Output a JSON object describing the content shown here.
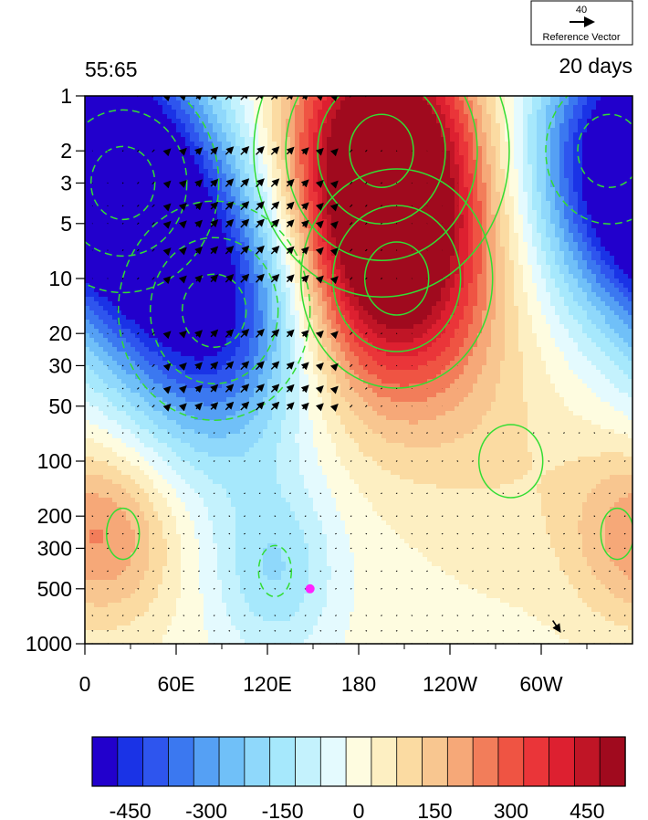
{
  "figure": {
    "left_title": "55:65",
    "right_title": "20 days",
    "reference_vector": {
      "magnitude": "40",
      "label": "Reference Vector"
    }
  },
  "chart_data": {
    "type": "heatmap",
    "description_free": true,
    "x_ticks": [
      {
        "lon": 0,
        "label": "0"
      },
      {
        "lon": 60,
        "label": "60E"
      },
      {
        "lon": 120,
        "label": "120E"
      },
      {
        "lon": 180,
        "label": "180"
      },
      {
        "lon": 240,
        "label": "120W"
      },
      {
        "lon": 300,
        "label": "60W"
      }
    ],
    "xlim": [
      0,
      360
    ],
    "y_scale": "log",
    "y_reversed": true,
    "ylim": [
      1000,
      1
    ],
    "y_ticks": [
      {
        "p": 1,
        "label": "1"
      },
      {
        "p": 2,
        "label": "2"
      },
      {
        "p": 3,
        "label": "3"
      },
      {
        "p": 5,
        "label": "5"
      },
      {
        "p": 10,
        "label": "10"
      },
      {
        "p": 20,
        "label": "20"
      },
      {
        "p": 30,
        "label": "30"
      },
      {
        "p": 50,
        "label": "50"
      },
      {
        "p": 100,
        "label": "100"
      },
      {
        "p": 200,
        "label": "200"
      },
      {
        "p": 300,
        "label": "300"
      },
      {
        "p": 500,
        "label": "500"
      },
      {
        "p": 1000,
        "label": "1000"
      }
    ],
    "colorbar": {
      "levels": [
        -525,
        -475,
        -425,
        -375,
        -325,
        -275,
        -225,
        -175,
        -125,
        -75,
        -25,
        25,
        75,
        125,
        175,
        225,
        275,
        325,
        375,
        425,
        475,
        525
      ],
      "colors": [
        "#2200cc",
        "#1a33e6",
        "#2e55ee",
        "#3b78f0",
        "#55a0f4",
        "#70c0f8",
        "#8fd8fb",
        "#a6e8fc",
        "#c4f2fd",
        "#e4fafe",
        "#fefce0",
        "#fdefc2",
        "#fbdba2",
        "#f8c690",
        "#f6a878",
        "#f27d5a",
        "#ef5443",
        "#ea3539",
        "#dd2030",
        "#c01526",
        "#a00a1e"
      ],
      "tick_values": [
        -450,
        -300,
        -150,
        0,
        150,
        300,
        450
      ],
      "tick_labels": [
        "-450",
        "-300",
        "-150",
        "0",
        "150",
        "300",
        "450"
      ]
    },
    "feature_centers": [
      {
        "sign": "positive",
        "lon": 195,
        "p": 2,
        "amplitude": 560
      },
      {
        "sign": "positive",
        "lon": 205,
        "p": 10,
        "amplitude": 420
      },
      {
        "sign": "negative",
        "lon": 25,
        "p": 3,
        "amplitude": -520
      },
      {
        "sign": "negative",
        "lon": 85,
        "p": 15,
        "amplitude": -480
      },
      {
        "sign": "negative",
        "lon": 345,
        "p": 2,
        "amplitude": -300
      },
      {
        "sign": "positive",
        "lon": 25,
        "p": 250,
        "amplitude": 160
      },
      {
        "sign": "positive",
        "lon": 350,
        "p": 250,
        "amplitude": 120
      },
      {
        "sign": "negative",
        "lon": 125,
        "p": 400,
        "amplitude": -170
      },
      {
        "sign": "positive",
        "lon": 280,
        "p": 100,
        "amplitude": 60
      }
    ],
    "marker": {
      "lon": 148,
      "p": 500,
      "color": "#ff22ff"
    },
    "contour_color": "#33dd33",
    "vector_color": "#000000",
    "highlight_vector": {
      "lon": 310,
      "p": 800
    }
  }
}
